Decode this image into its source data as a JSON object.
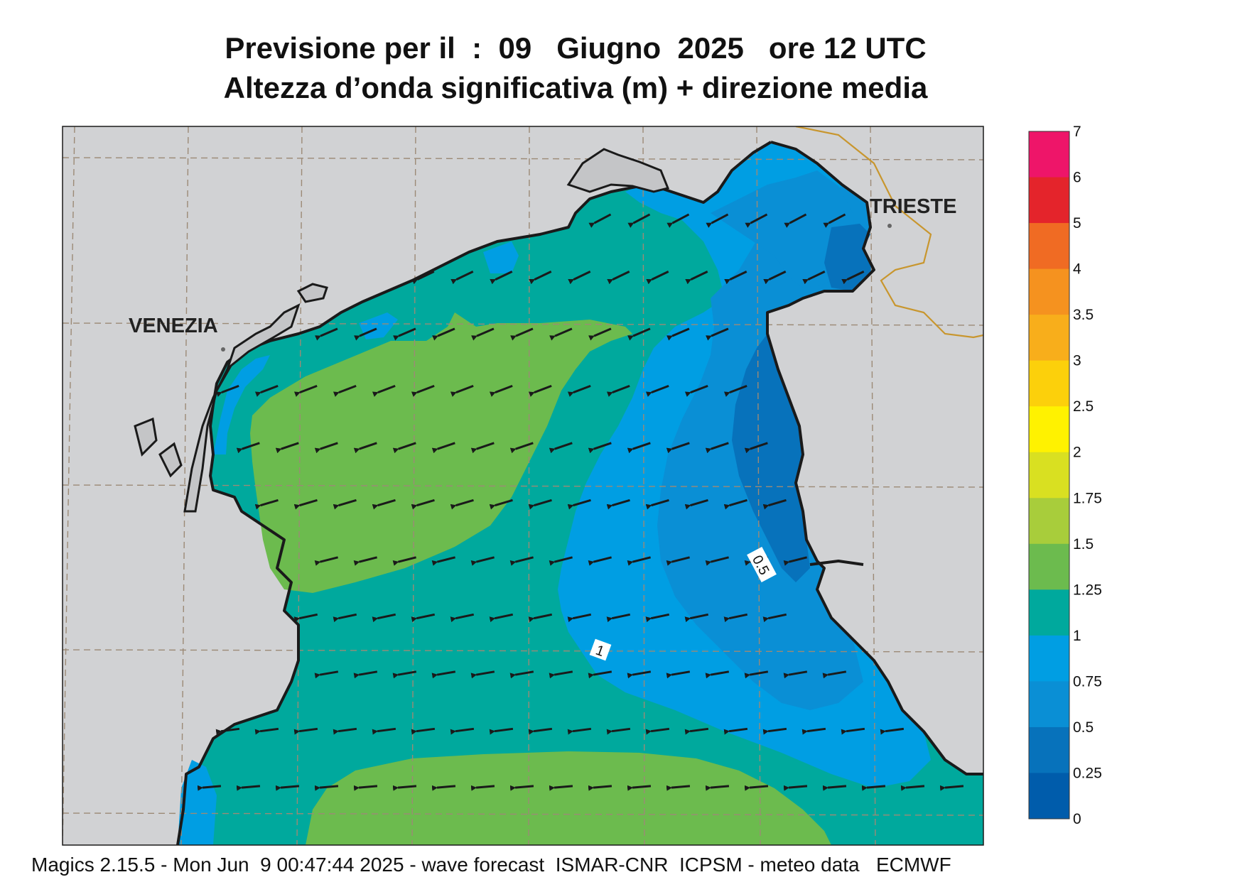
{
  "header": {
    "title_line1": "Previsione per il  :  09   Giugno  2025   ore 12 UTC",
    "title_line2": "Altezza d’onda significativa (m) + direzione media"
  },
  "map": {
    "cities": [
      "VENEZIA",
      "TRIESTE"
    ],
    "contour_labels": [
      "0.5",
      "1"
    ],
    "land_color": "#d1d2d4",
    "coast_color": "#1a1a1a",
    "border_color": "#c8962e",
    "arrow_color": "#1a1a1a",
    "mean_wave_direction": "from east-northeast"
  },
  "legend": {
    "title": "",
    "ticks": [
      "7",
      "6",
      "5",
      "4",
      "3.5",
      "3",
      "2.5",
      "2",
      "1.75",
      "1.5",
      "1.25",
      "1",
      "0.75",
      "0.5",
      "0.25",
      "0"
    ],
    "colors": [
      "#ee1569",
      "#e4242b",
      "#f06b23",
      "#f5921f",
      "#f8ae1b",
      "#fcd00b",
      "#fff200",
      "#d9e021",
      "#a8cd3b",
      "#6cbb4e",
      "#00a99d",
      "#009ee3",
      "#0a8fd5",
      "#0772bb",
      "#005cab"
    ]
  },
  "footer": {
    "text": "Magics 2.15.5 - Mon Jun  9 00:47:44 2025 - wave forecast  ISMAR-CNR  ICPSM - meteo data   ECMWF"
  }
}
